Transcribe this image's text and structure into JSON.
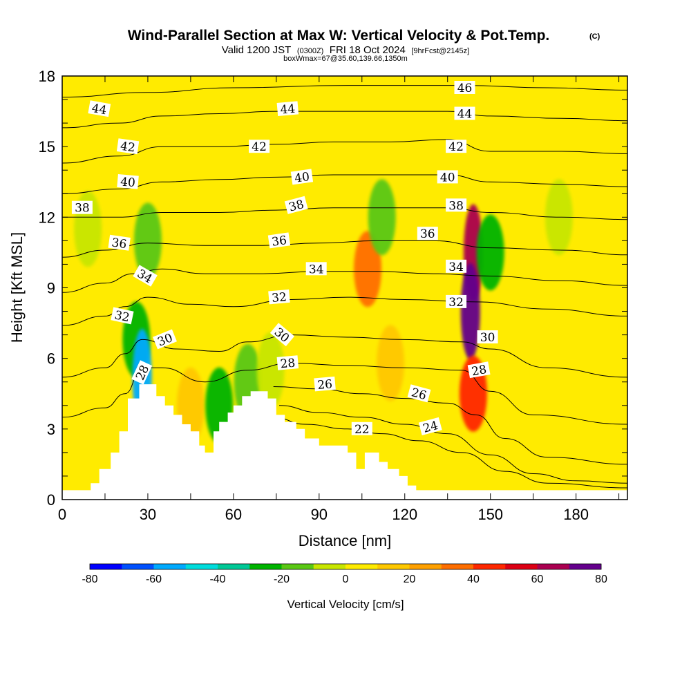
{
  "chart_data": {
    "type": "heatmap",
    "title": "Wind-Parallel Section at Max W: Vertical Velocity & Pot.Temp.",
    "title_mark": "(C)",
    "subtitle_prefix": "Valid 1200 JST",
    "subtitle_utc": "(0300Z)",
    "subtitle_date": "FRI 18 Oct 2024",
    "subtitle_fcst": "[9hrFcst@2145z]",
    "subtitle2": "boxWmax=67@35.60,139.66,1350m",
    "xlabel": "Distance [nm]",
    "ylabel": "Height [Kft MSL]",
    "xlim": [
      0,
      198
    ],
    "ylim": [
      0,
      18
    ],
    "x_ticks": [
      "0",
      "30",
      "60",
      "90",
      "120",
      "150",
      "180"
    ],
    "x_tick_values": [
      0,
      30,
      60,
      90,
      120,
      150,
      180
    ],
    "y_ticks": [
      "0",
      "3",
      "6",
      "9",
      "12",
      "15",
      "18"
    ],
    "y_tick_values": [
      0,
      3,
      6,
      9,
      12,
      15,
      18
    ],
    "colorbar": {
      "label": "Vertical Velocity [cm/s]",
      "range": [
        -80,
        80
      ],
      "tick_labels": [
        "-80",
        "-60",
        "-40",
        "-20",
        "0",
        "20",
        "40",
        "60",
        "80"
      ],
      "tick_values": [
        -80,
        -60,
        -40,
        -20,
        0,
        20,
        40,
        60,
        80
      ],
      "colors": [
        "#0000ff",
        "#0050ff",
        "#00aaff",
        "#00dcdc",
        "#00c896",
        "#00b400",
        "#5ac814",
        "#c8e600",
        "#ffeb00",
        "#ffc800",
        "#ffa000",
        "#ff6e00",
        "#ff2800",
        "#dc0014",
        "#aa0050",
        "#64008c"
      ]
    },
    "vv_features": [
      {
        "x": 9,
        "y": 11.5,
        "w": -10
      },
      {
        "x": 30,
        "y": 11,
        "w": -15
      },
      {
        "x": 26,
        "y": 6.8,
        "w": -30
      },
      {
        "x": 28,
        "y": 5.2,
        "w": -55
      },
      {
        "x": 45,
        "y": 4,
        "w": 15
      },
      {
        "x": 55,
        "y": 4,
        "w": -25
      },
      {
        "x": 65,
        "y": 5,
        "w": -20
      },
      {
        "x": 73,
        "y": 5.5,
        "w": -10
      },
      {
        "x": 107,
        "y": 9.8,
        "w": 35
      },
      {
        "x": 115,
        "y": 5.8,
        "w": 15
      },
      {
        "x": 112,
        "y": 12,
        "w": -12
      },
      {
        "x": 144,
        "y": 10.5,
        "w": 65
      },
      {
        "x": 143,
        "y": 8,
        "w": 75
      },
      {
        "x": 144,
        "y": 4.5,
        "w": 40
      },
      {
        "x": 150,
        "y": 10.5,
        "w": -30
      },
      {
        "x": 174,
        "y": 12,
        "w": -10
      }
    ],
    "terrain": [
      {
        "x": 0,
        "h": 0.4
      },
      {
        "x": 10,
        "h": 0.4
      },
      {
        "x": 10,
        "h": 0.7
      },
      {
        "x": 13,
        "h": 0.7
      },
      {
        "x": 13,
        "h": 1.3
      },
      {
        "x": 17,
        "h": 1.3
      },
      {
        "x": 17,
        "h": 2.0
      },
      {
        "x": 20,
        "h": 2.0
      },
      {
        "x": 20,
        "h": 2.9
      },
      {
        "x": 23,
        "h": 2.9
      },
      {
        "x": 23,
        "h": 4.3
      },
      {
        "x": 27,
        "h": 4.3
      },
      {
        "x": 27,
        "h": 4.9
      },
      {
        "x": 33,
        "h": 4.9
      },
      {
        "x": 33,
        "h": 4.4
      },
      {
        "x": 36,
        "h": 4.4
      },
      {
        "x": 36,
        "h": 4.0
      },
      {
        "x": 39,
        "h": 4.0
      },
      {
        "x": 39,
        "h": 3.6
      },
      {
        "x": 42,
        "h": 3.6
      },
      {
        "x": 42,
        "h": 3.2
      },
      {
        "x": 45,
        "h": 3.2
      },
      {
        "x": 45,
        "h": 2.9
      },
      {
        "x": 48,
        "h": 2.9
      },
      {
        "x": 48,
        "h": 2.3
      },
      {
        "x": 50,
        "h": 2.3
      },
      {
        "x": 50,
        "h": 2.0
      },
      {
        "x": 53,
        "h": 2.0
      },
      {
        "x": 53,
        "h": 2.9
      },
      {
        "x": 55,
        "h": 2.9
      },
      {
        "x": 55,
        "h": 3.3
      },
      {
        "x": 58,
        "h": 3.3
      },
      {
        "x": 58,
        "h": 3.7
      },
      {
        "x": 60,
        "h": 3.7
      },
      {
        "x": 60,
        "h": 4.0
      },
      {
        "x": 63,
        "h": 4.0
      },
      {
        "x": 63,
        "h": 4.4
      },
      {
        "x": 66,
        "h": 4.4
      },
      {
        "x": 66,
        "h": 4.6
      },
      {
        "x": 72,
        "h": 4.6
      },
      {
        "x": 72,
        "h": 4.3
      },
      {
        "x": 75,
        "h": 4.3
      },
      {
        "x": 75,
        "h": 3.6
      },
      {
        "x": 78,
        "h": 3.6
      },
      {
        "x": 78,
        "h": 3.3
      },
      {
        "x": 82,
        "h": 3.3
      },
      {
        "x": 82,
        "h": 3.0
      },
      {
        "x": 85,
        "h": 3.0
      },
      {
        "x": 85,
        "h": 2.6
      },
      {
        "x": 90,
        "h": 2.6
      },
      {
        "x": 90,
        "h": 2.3
      },
      {
        "x": 100,
        "h": 2.3
      },
      {
        "x": 100,
        "h": 2.0
      },
      {
        "x": 103,
        "h": 2.0
      },
      {
        "x": 103,
        "h": 1.3
      },
      {
        "x": 106,
        "h": 1.3
      },
      {
        "x": 106,
        "h": 2.0
      },
      {
        "x": 111,
        "h": 2.0
      },
      {
        "x": 111,
        "h": 1.6
      },
      {
        "x": 114,
        "h": 1.6
      },
      {
        "x": 114,
        "h": 1.3
      },
      {
        "x": 118,
        "h": 1.3
      },
      {
        "x": 118,
        "h": 1.0
      },
      {
        "x": 121,
        "h": 1.0
      },
      {
        "x": 121,
        "h": 0.6
      },
      {
        "x": 124,
        "h": 0.6
      },
      {
        "x": 124,
        "h": 0.4
      },
      {
        "x": 198,
        "h": 0.4
      }
    ],
    "theta_contours": [
      {
        "value": 22,
        "pts": [
          [
            74,
            3.5
          ],
          [
            85,
            3.2
          ],
          [
            100,
            3.0
          ],
          [
            112,
            2.8
          ],
          [
            125,
            2.5
          ],
          [
            140,
            2.0
          ],
          [
            155,
            1.2
          ],
          [
            170,
            0.7
          ],
          [
            198,
            0.5
          ]
        ]
      },
      {
        "value": 24,
        "pts": [
          [
            76,
            4.0
          ],
          [
            90,
            3.7
          ],
          [
            105,
            3.5
          ],
          [
            120,
            3.2
          ],
          [
            135,
            2.8
          ],
          [
            150,
            1.9
          ],
          [
            165,
            1.1
          ],
          [
            180,
            0.8
          ],
          [
            198,
            0.7
          ]
        ]
      },
      {
        "value": 26,
        "pts": [
          [
            74,
            4.8
          ],
          [
            90,
            4.7
          ],
          [
            105,
            4.5
          ],
          [
            120,
            4.3
          ],
          [
            135,
            4.1
          ],
          [
            145,
            3.6
          ],
          [
            155,
            2.6
          ],
          [
            170,
            1.8
          ],
          [
            198,
            1.5
          ]
        ]
      },
      {
        "value": 28,
        "pts": [
          [
            0,
            3.5
          ],
          [
            15,
            3.9
          ],
          [
            22,
            4.5
          ],
          [
            28,
            5.6
          ],
          [
            35,
            5.6
          ],
          [
            50,
            5.0
          ],
          [
            65,
            5.5
          ],
          [
            80,
            5.8
          ],
          [
            100,
            5.7
          ],
          [
            120,
            5.6
          ],
          [
            140,
            5.5
          ],
          [
            150,
            4.6
          ],
          [
            165,
            3.6
          ],
          [
            198,
            3.2
          ]
        ]
      },
      {
        "value": 30,
        "pts": [
          [
            0,
            5.2
          ],
          [
            15,
            5.6
          ],
          [
            22,
            6.2
          ],
          [
            28,
            6.8
          ],
          [
            40,
            6.4
          ],
          [
            55,
            6.3
          ],
          [
            65,
            6.7
          ],
          [
            80,
            7.0
          ],
          [
            100,
            6.9
          ],
          [
            120,
            6.8
          ],
          [
            140,
            6.7
          ],
          [
            150,
            6.4
          ],
          [
            170,
            5.6
          ],
          [
            198,
            5.2
          ]
        ]
      },
      {
        "value": 32,
        "pts": [
          [
            0,
            7.4
          ],
          [
            15,
            7.8
          ],
          [
            22,
            8.2
          ],
          [
            30,
            8.6
          ],
          [
            45,
            8.3
          ],
          [
            60,
            8.2
          ],
          [
            80,
            8.5
          ],
          [
            100,
            8.6
          ],
          [
            120,
            8.5
          ],
          [
            145,
            8.4
          ],
          [
            170,
            8.1
          ],
          [
            198,
            7.8
          ]
        ]
      },
      {
        "value": 34,
        "pts": [
          [
            0,
            8.8
          ],
          [
            15,
            9.2
          ],
          [
            25,
            9.6
          ],
          [
            35,
            9.8
          ],
          [
            50,
            9.6
          ],
          [
            70,
            9.6
          ],
          [
            90,
            9.7
          ],
          [
            110,
            9.7
          ],
          [
            130,
            9.6
          ],
          [
            150,
            9.5
          ],
          [
            175,
            9.3
          ],
          [
            198,
            9.1
          ]
        ]
      },
      {
        "value": 36,
        "pts": [
          [
            0,
            10.3
          ],
          [
            15,
            10.6
          ],
          [
            30,
            10.9
          ],
          [
            50,
            10.8
          ],
          [
            70,
            10.8
          ],
          [
            90,
            10.9
          ],
          [
            110,
            11.0
          ],
          [
            130,
            11.0
          ],
          [
            150,
            10.7
          ],
          [
            175,
            10.6
          ],
          [
            198,
            10.4
          ]
        ]
      },
      {
        "value": 38,
        "pts": [
          [
            0,
            12.0
          ],
          [
            20,
            12.0
          ],
          [
            35,
            12.2
          ],
          [
            55,
            12.2
          ],
          [
            75,
            12.3
          ],
          [
            95,
            12.4
          ],
          [
            115,
            12.4
          ],
          [
            135,
            12.4
          ],
          [
            150,
            12.2
          ],
          [
            175,
            12.0
          ],
          [
            198,
            11.9
          ]
        ]
      },
      {
        "value": 40,
        "pts": [
          [
            0,
            13.0
          ],
          [
            20,
            13.2
          ],
          [
            35,
            13.5
          ],
          [
            55,
            13.6
          ],
          [
            75,
            13.7
          ],
          [
            95,
            13.8
          ],
          [
            115,
            13.8
          ],
          [
            135,
            13.8
          ],
          [
            150,
            13.5
          ],
          [
            175,
            13.4
          ],
          [
            198,
            13.3
          ]
        ]
      },
      {
        "value": 42,
        "pts": [
          [
            0,
            14.3
          ],
          [
            20,
            14.6
          ],
          [
            35,
            15.0
          ],
          [
            55,
            15.0
          ],
          [
            75,
            15.1
          ],
          [
            95,
            15.2
          ],
          [
            115,
            15.2
          ],
          [
            135,
            15.3
          ],
          [
            150,
            14.8
          ],
          [
            175,
            14.8
          ],
          [
            198,
            14.7
          ]
        ]
      },
      {
        "value": 44,
        "pts": [
          [
            0,
            15.8
          ],
          [
            20,
            16.0
          ],
          [
            35,
            16.3
          ],
          [
            55,
            16.4
          ],
          [
            75,
            16.5
          ],
          [
            95,
            16.5
          ],
          [
            115,
            16.5
          ],
          [
            135,
            16.5
          ],
          [
            150,
            16.3
          ],
          [
            175,
            16.2
          ],
          [
            198,
            16.1
          ]
        ]
      },
      {
        "value": 46,
        "pts": [
          [
            0,
            17.1
          ],
          [
            30,
            17.3
          ],
          [
            60,
            17.5
          ],
          [
            100,
            17.6
          ],
          [
            140,
            17.6
          ],
          [
            170,
            17.5
          ],
          [
            198,
            17.4
          ]
        ]
      }
    ],
    "contour_labels": [
      {
        "text": "44",
        "x": 13,
        "y": 16.6,
        "angle": 10
      },
      {
        "text": "44",
        "x": 79,
        "y": 16.6,
        "angle": -5
      },
      {
        "text": "46",
        "x": 141,
        "y": 17.5,
        "angle": 0
      },
      {
        "text": "44",
        "x": 141,
        "y": 16.4,
        "angle": 0
      },
      {
        "text": "42",
        "x": 23,
        "y": 15.0,
        "angle": 8
      },
      {
        "text": "42",
        "x": 69,
        "y": 15.0,
        "angle": 0
      },
      {
        "text": "42",
        "x": 138,
        "y": 15.0,
        "angle": 0
      },
      {
        "text": "40",
        "x": 23,
        "y": 13.5,
        "angle": 5
      },
      {
        "text": "40",
        "x": 84,
        "y": 13.7,
        "angle": -8
      },
      {
        "text": "40",
        "x": 135,
        "y": 13.7,
        "angle": 0
      },
      {
        "text": "38",
        "x": 7,
        "y": 12.4,
        "angle": 0
      },
      {
        "text": "38",
        "x": 82,
        "y": 12.5,
        "angle": -15
      },
      {
        "text": "38",
        "x": 138,
        "y": 12.5,
        "angle": 0
      },
      {
        "text": "36",
        "x": 20,
        "y": 10.9,
        "angle": 8
      },
      {
        "text": "36",
        "x": 76,
        "y": 11.0,
        "angle": -8
      },
      {
        "text": "36",
        "x": 128,
        "y": 11.3,
        "angle": 0
      },
      {
        "text": "34",
        "x": 29,
        "y": 9.5,
        "angle": 30
      },
      {
        "text": "34",
        "x": 89,
        "y": 9.8,
        "angle": 0
      },
      {
        "text": "34",
        "x": 138,
        "y": 9.9,
        "angle": 0
      },
      {
        "text": "32",
        "x": 21,
        "y": 7.8,
        "angle": 12
      },
      {
        "text": "32",
        "x": 76,
        "y": 8.6,
        "angle": -5
      },
      {
        "text": "32",
        "x": 138,
        "y": 8.4,
        "angle": 0
      },
      {
        "text": "30",
        "x": 36,
        "y": 6.8,
        "angle": -22
      },
      {
        "text": "30",
        "x": 77,
        "y": 7.0,
        "angle": 40
      },
      {
        "text": "30",
        "x": 149,
        "y": 6.9,
        "angle": 0
      },
      {
        "text": "28",
        "x": 28,
        "y": 5.4,
        "angle": -65
      },
      {
        "text": "28",
        "x": 79,
        "y": 5.8,
        "angle": -5
      },
      {
        "text": "28",
        "x": 146,
        "y": 5.5,
        "angle": -10
      },
      {
        "text": "26",
        "x": 92,
        "y": 4.9,
        "angle": -5
      },
      {
        "text": "26",
        "x": 125,
        "y": 4.5,
        "angle": 15
      },
      {
        "text": "24",
        "x": 129,
        "y": 3.1,
        "angle": -15
      },
      {
        "text": "22",
        "x": 105,
        "y": 3.0,
        "angle": 0
      }
    ]
  }
}
